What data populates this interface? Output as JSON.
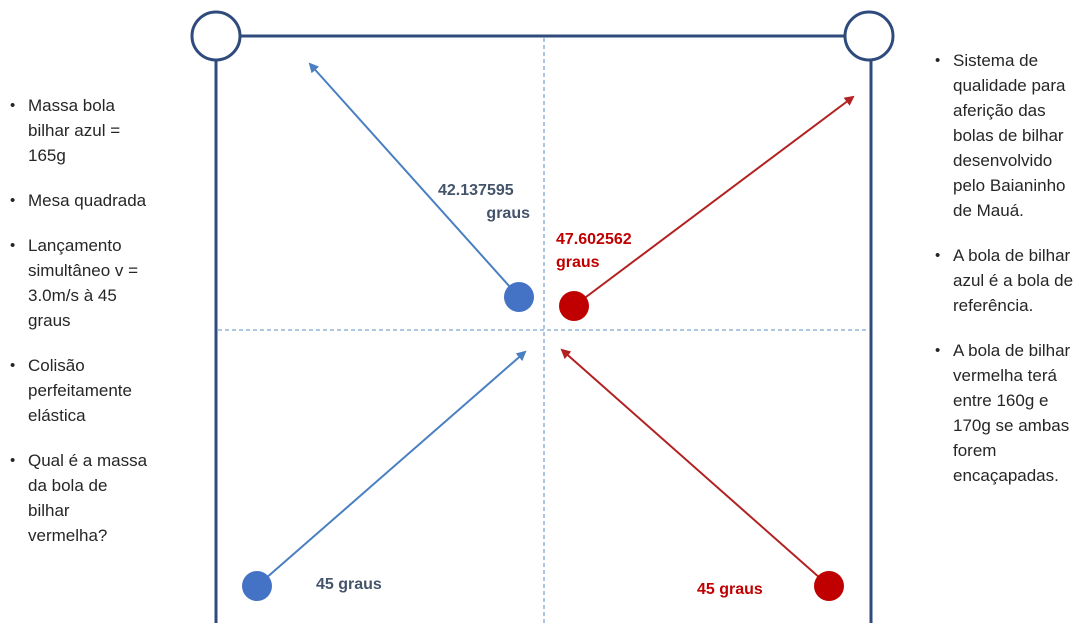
{
  "left_notes": [
    "Massa bola bilhar azul = 165g",
    "Mesa quadrada",
    "Lançamento simultâneo v = 3.0m/s à 45 graus",
    "Colisão perfeitamente elástica",
    "Qual é a massa da bola de bilhar vermelha?"
  ],
  "right_notes": [
    "Sistema de qualidade para aferição das bolas de bilhar desenvolvido pelo Baianinho de Mauá.",
    "A bola de bilhar azul é a bola de referência.",
    "A bola de bilhar vermelha terá entre 160g e 170g se ambas forem encaçapadas."
  ],
  "angle_labels": {
    "blue_out_value": "42.137595",
    "blue_out_unit": "graus",
    "red_out_value": "47.602562",
    "red_out_unit": "graus",
    "blue_in": "45 graus",
    "red_in": "45 graus"
  },
  "colors": {
    "table_border": "#2f4b7c",
    "guide": "#7fa7cf",
    "blue_ball": "#4472c4",
    "blue_arrow": "#4a7fc1",
    "red_ball": "#c00000",
    "red_arrow": "#b22222",
    "blue_label": "#44546a",
    "red_label": "#c00000"
  }
}
